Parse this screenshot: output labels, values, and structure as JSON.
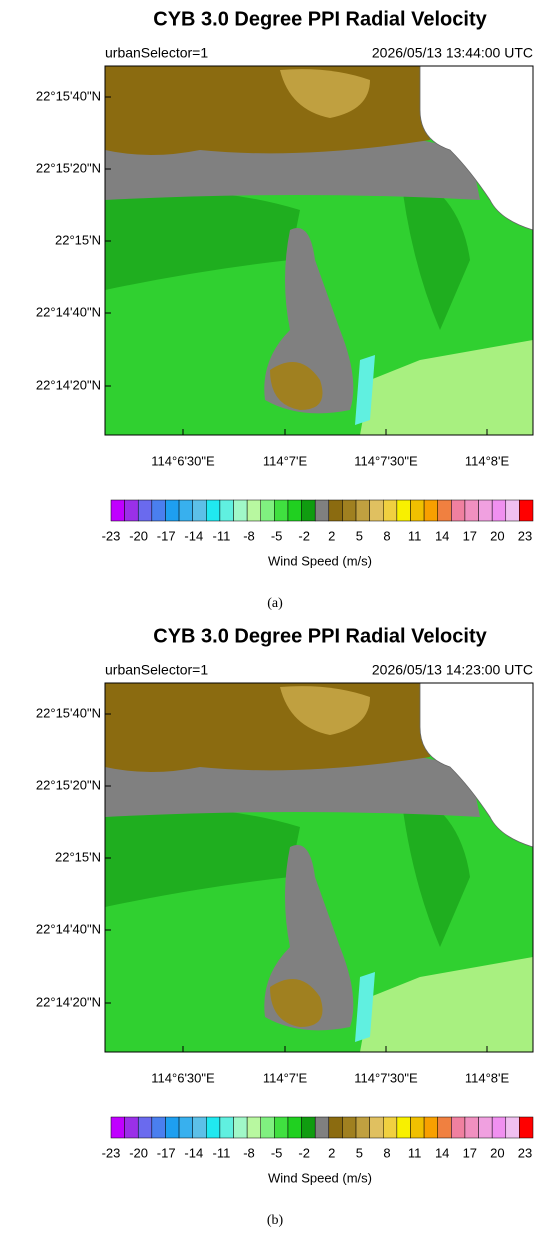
{
  "panels": [
    {
      "title": "CYB 3.0 Degree PPI Radial Velocity",
      "left_label": "urbanSelector=1",
      "right_label": "2026/05/13 13:44:00 UTC",
      "y_labels": [
        "22°15'40\"N",
        "22°15'20\"N",
        "22°15'N",
        "22°14'40\"N",
        "22°14'20\"N"
      ],
      "x_labels": [
        "114°6'30\"E",
        "114°7'E",
        "114°7'30\"E",
        "114°8'E"
      ],
      "colorbar_labels": [
        "-23",
        "-20",
        "-17",
        "-14",
        "-11",
        "-8",
        "-5",
        "-2",
        "2",
        "5",
        "8",
        "11",
        "14",
        "17",
        "20",
        "23"
      ],
      "colorbar_title": "Wind Speed (m/s)",
      "caption": "(a)"
    },
    {
      "title": "CYB 3.0 Degree PPI Radial Velocity",
      "left_label": "urbanSelector=1",
      "right_label": "2026/05/13 14:23:00 UTC",
      "y_labels": [
        "22°15'40\"N",
        "22°15'20\"N",
        "22°15'N",
        "22°14'40\"N",
        "22°14'20\"N"
      ],
      "x_labels": [
        "114°6'30\"E",
        "114°7'E",
        "114°7'30\"E",
        "114°8'E"
      ],
      "colorbar_labels": [
        "-23",
        "-20",
        "-17",
        "-14",
        "-11",
        "-8",
        "-5",
        "-2",
        "2",
        "5",
        "8",
        "11",
        "14",
        "17",
        "20",
        "23"
      ],
      "colorbar_title": "Wind Speed (m/s)",
      "caption": "(b)"
    }
  ],
  "colorbar_colors": [
    "#c000ff",
    "#9a30e8",
    "#6a6aee",
    "#4a7fef",
    "#1e9ff0",
    "#38b0ee",
    "#5cc0e8",
    "#20e8f0",
    "#60f0e0",
    "#a0f8c8",
    "#b8f8a0",
    "#80f080",
    "#40e040",
    "#20d020",
    "#109c10",
    "#808080",
    "#8b6b10",
    "#a08020",
    "#c0a040",
    "#e0c060",
    "#f0d040",
    "#f8f000",
    "#f0c000",
    "#f8a000",
    "#f08040",
    "#f080a0",
    "#f090c0",
    "#f0a0e0",
    "#f090f0",
    "#f0c0f0",
    "#ff0000"
  ]
}
